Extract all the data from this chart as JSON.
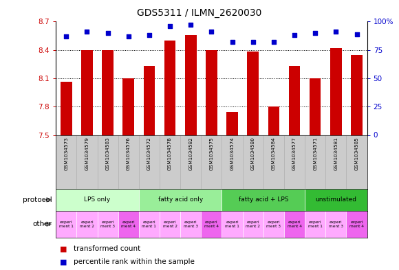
{
  "title": "GDS5311 / ILMN_2620030",
  "samples": [
    "GSM1034573",
    "GSM1034579",
    "GSM1034583",
    "GSM1034576",
    "GSM1034572",
    "GSM1034578",
    "GSM1034582",
    "GSM1034575",
    "GSM1034574",
    "GSM1034580",
    "GSM1034584",
    "GSM1034577",
    "GSM1034571",
    "GSM1034581",
    "GSM1034585"
  ],
  "transformed_count": [
    8.06,
    8.4,
    8.4,
    8.1,
    8.23,
    8.5,
    8.56,
    8.4,
    7.74,
    8.38,
    7.8,
    8.23,
    8.1,
    8.42,
    8.35
  ],
  "percentile_rank": [
    87,
    91,
    90,
    87,
    88,
    96,
    97,
    91,
    82,
    82,
    82,
    88,
    90,
    91,
    89
  ],
  "ylim_left": [
    7.5,
    8.7
  ],
  "ylim_right": [
    0,
    100
  ],
  "yticks_left": [
    7.5,
    7.8,
    8.1,
    8.4,
    8.7
  ],
  "yticks_right": [
    0,
    25,
    50,
    75,
    100
  ],
  "bar_color": "#cc0000",
  "dot_color": "#0000cc",
  "protocol_groups": [
    {
      "label": "LPS only",
      "start": 0,
      "end": 4,
      "color": "#ccffcc"
    },
    {
      "label": "fatty acid only",
      "start": 4,
      "end": 8,
      "color": "#99ee99"
    },
    {
      "label": "fatty acid + LPS",
      "start": 8,
      "end": 12,
      "color": "#55cc55"
    },
    {
      "label": "unstimulated",
      "start": 12,
      "end": 15,
      "color": "#33bb33"
    }
  ],
  "other_colors": [
    "#ffaaff",
    "#ffaaff",
    "#ffaaff",
    "#ee66ee",
    "#ffaaff",
    "#ffaaff",
    "#ffaaff",
    "#ee66ee",
    "#ffaaff",
    "#ffaaff",
    "#ffaaff",
    "#ee66ee",
    "#ffaaff",
    "#ffaaff",
    "#ee66ee"
  ],
  "other_labels": [
    "experi\nment 1",
    "experi\nment 2",
    "experi\nment 3",
    "experi\nment 4",
    "experi\nment 1",
    "experi\nment 2",
    "experi\nment 3",
    "experi\nment 4",
    "experi\nment 1",
    "experi\nment 2",
    "experi\nment 3",
    "experi\nment 4",
    "experi\nment 1",
    "experi\nment 3",
    "experi\nment 4"
  ],
  "legend_bar_label": "transformed count",
  "legend_dot_label": "percentile rank within the sample",
  "protocol_label": "protocol",
  "other_label": "other",
  "chart_bg": "#ffffff",
  "sample_bg": "#cccccc"
}
